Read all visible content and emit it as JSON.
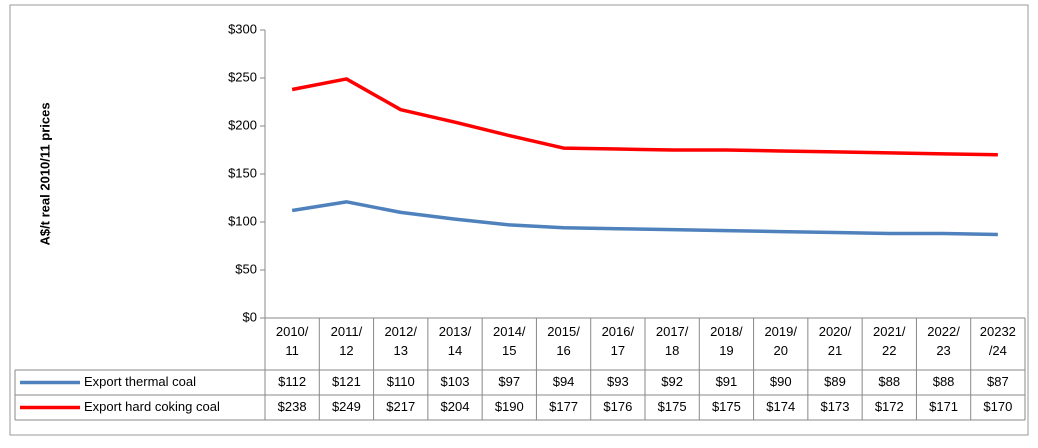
{
  "chart_data": {
    "type": "line",
    "y_label": "A$/t real 2010/11 prices",
    "categories": [
      "2010/11",
      "2011/12",
      "2012/13",
      "2013/14",
      "2014/15",
      "2015/16",
      "2016/17",
      "2017/18",
      "2018/19",
      "2019/20",
      "2020/21",
      "2021/22",
      "2022/23",
      "20232/24"
    ],
    "series": [
      {
        "name": "Export thermal coal",
        "color": "#4f81bd",
        "values": [
          112,
          121,
          110,
          103,
          97,
          94,
          93,
          92,
          91,
          90,
          89,
          88,
          88,
          87
        ],
        "value_labels": [
          "$112",
          "$121",
          "$110",
          "$103",
          "$97",
          "$94",
          "$93",
          "$92",
          "$91",
          "$90",
          "$89",
          "$88",
          "$88",
          "$87"
        ]
      },
      {
        "name": "Export hard coking coal",
        "color": "#ff0000",
        "values": [
          238,
          249,
          217,
          204,
          190,
          177,
          176,
          175,
          175,
          174,
          173,
          172,
          171,
          170
        ],
        "value_labels": [
          "$238",
          "$249",
          "$217",
          "$204",
          "$190",
          "$177",
          "$176",
          "$175",
          "$175",
          "$174",
          "$173",
          "$172",
          "$171",
          "$170"
        ]
      }
    ],
    "ylim": [
      0,
      300
    ],
    "yticks": [
      {
        "value": 0,
        "label": "$0"
      },
      {
        "value": 50,
        "label": "$50"
      },
      {
        "value": 100,
        "label": "$100"
      },
      {
        "value": 150,
        "label": "$150"
      },
      {
        "value": 200,
        "label": "$200"
      },
      {
        "value": 250,
        "label": "$250"
      },
      {
        "value": 300,
        "label": "$300"
      }
    ],
    "grid": false
  }
}
